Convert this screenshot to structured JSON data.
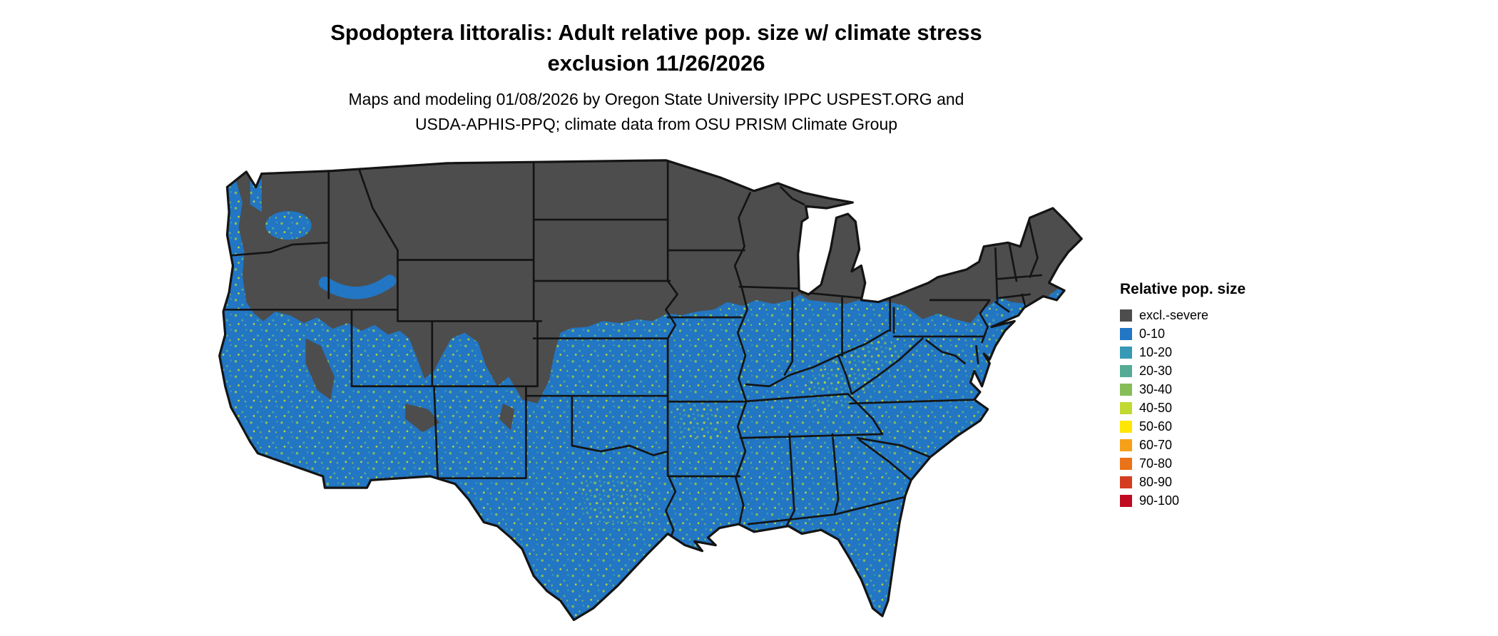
{
  "title": {
    "line1": "Spodoptera littoralis: Adult relative pop. size w/ climate stress",
    "line2": "exclusion 11/26/2026"
  },
  "subtitle": {
    "line1": "Maps and modeling 01/08/2026 by Oregon State University IPPC USPEST.ORG and",
    "line2": "USDA-APHIS-PPQ; climate data from OSU PRISM Climate Group"
  },
  "legend": {
    "title": "Relative pop. size",
    "items": [
      {
        "label": "excl.-severe",
        "color": "#4d4d4d"
      },
      {
        "label": "0-10",
        "color": "#2276c3"
      },
      {
        "label": "10-20",
        "color": "#3799b5"
      },
      {
        "label": "20-30",
        "color": "#55ab94"
      },
      {
        "label": "30-40",
        "color": "#86bd58"
      },
      {
        "label": "40-50",
        "color": "#c2d931"
      },
      {
        "label": "50-60",
        "color": "#ffe605"
      },
      {
        "label": "60-70",
        "color": "#f6a019"
      },
      {
        "label": "70-80",
        "color": "#ea7218"
      },
      {
        "label": "80-90",
        "color": "#d43d1f"
      },
      {
        "label": "90-100",
        "color": "#c00a22"
      }
    ]
  },
  "map": {
    "region": "Conterminous United States with state boundaries",
    "type": "raster choropleth",
    "classes_shown": {
      "northern_interior_states": "excl.-severe",
      "southern_and_coastal_states": "0-10 with scattered 10-50 pixels"
    }
  }
}
